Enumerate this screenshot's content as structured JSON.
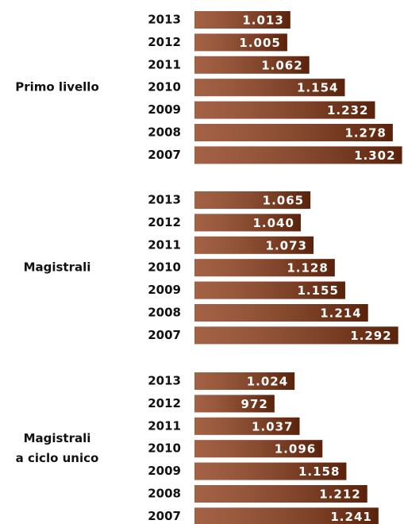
{
  "chart_data": [
    {
      "type": "bar",
      "title": [
        "Primo livello"
      ],
      "categories": [
        "2013",
        "2012",
        "2011",
        "2010",
        "2009",
        "2008",
        "2007"
      ],
      "values": [
        1013,
        1005,
        1062,
        1154,
        1232,
        1278,
        1302
      ],
      "value_labels": [
        "1.013",
        "1.005",
        "1.062",
        "1.154",
        "1.232",
        "1.278",
        "1.302"
      ],
      "color": "#8a3510",
      "xlim": [
        765,
        1305
      ]
    },
    {
      "type": "bar",
      "title": [
        "Magistrali"
      ],
      "categories": [
        "2013",
        "2012",
        "2011",
        "2010",
        "2009",
        "2008",
        "2007"
      ],
      "values": [
        1065,
        1040,
        1073,
        1128,
        1155,
        1214,
        1292
      ],
      "value_labels": [
        "1.065",
        "1.040",
        "1.073",
        "1.128",
        "1.155",
        "1.214",
        "1.292"
      ],
      "color": "#8a3510",
      "xlim": [
        765,
        1305
      ]
    },
    {
      "type": "bar",
      "title": [
        "Magistrali",
        "a ciclo unico"
      ],
      "categories": [
        "2013",
        "2012",
        "2011",
        "2010",
        "2009",
        "2008",
        "2007"
      ],
      "values": [
        1024,
        972,
        1037,
        1096,
        1158,
        1212,
        1241
      ],
      "value_labels": [
        "1.024",
        "972",
        "1.037",
        "1.096",
        "1.158",
        "1.212",
        "1.241"
      ],
      "color": "#8a3510",
      "xlim": [
        765,
        1305
      ]
    }
  ]
}
